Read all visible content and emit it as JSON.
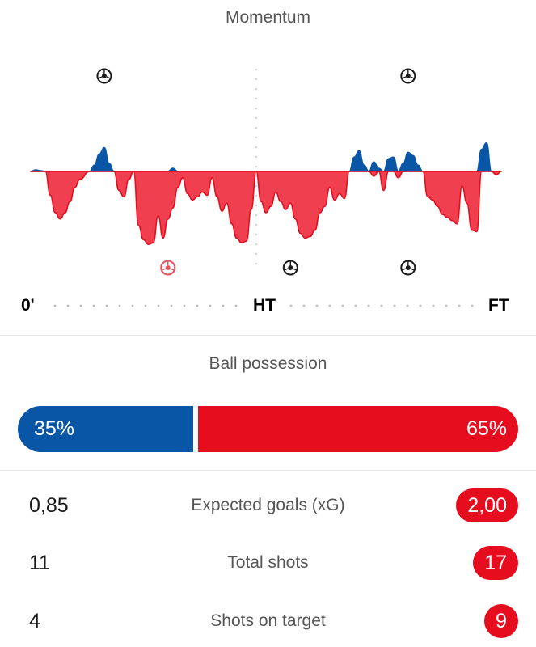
{
  "momentum": {
    "title": "Momentum",
    "axis_labels": {
      "start": "0'",
      "half_time": "HT",
      "full_time": "FT"
    },
    "home_color": "#0a56a6",
    "away_color": "#e60d1e",
    "goal_icon_name": "soccer-ball-icon",
    "events": [
      {
        "team": "home",
        "minute": 15,
        "type": "goal"
      },
      {
        "team": "away",
        "minute": 28,
        "type": "own-goal"
      },
      {
        "team": "away",
        "minute": 53,
        "type": "goal"
      },
      {
        "team": "home",
        "minute": 77,
        "type": "goal"
      },
      {
        "team": "away",
        "minute": 77,
        "type": "goal"
      }
    ]
  },
  "chart_data": {
    "type": "area",
    "title": "Momentum",
    "x_axis_ticks": [
      "0'",
      "HT",
      "FT"
    ],
    "series": [
      {
        "team": "home",
        "color": "#0a56a6",
        "points": [
          [
            0,
            0
          ],
          [
            1,
            2
          ],
          [
            2,
            1
          ],
          [
            3,
            0
          ],
          [
            12,
            0
          ],
          [
            13,
            8
          ],
          [
            14,
            22
          ],
          [
            15,
            30
          ],
          [
            16,
            10
          ],
          [
            17,
            0
          ],
          [
            28,
            0
          ],
          [
            29,
            4
          ],
          [
            30,
            0
          ],
          [
            65,
            0
          ],
          [
            66,
            18
          ],
          [
            67,
            26
          ],
          [
            68,
            8
          ],
          [
            69,
            0
          ],
          [
            70,
            12
          ],
          [
            71,
            4
          ],
          [
            72,
            0
          ],
          [
            73,
            16
          ],
          [
            74,
            18
          ],
          [
            75,
            0
          ],
          [
            76,
            10
          ],
          [
            77,
            24
          ],
          [
            78,
            20
          ],
          [
            79,
            8
          ],
          [
            80,
            0
          ],
          [
            91,
            0
          ],
          [
            92,
            28
          ],
          [
            93,
            36
          ],
          [
            94,
            0
          ],
          [
            95,
            0
          ]
        ]
      },
      {
        "team": "away",
        "color": "#e60d1e",
        "points": [
          [
            0,
            0
          ],
          [
            3,
            0
          ],
          [
            4,
            -30
          ],
          [
            5,
            -52
          ],
          [
            6,
            -60
          ],
          [
            7,
            -52
          ],
          [
            8,
            -38
          ],
          [
            9,
            -20
          ],
          [
            10,
            -10
          ],
          [
            12,
            0
          ],
          [
            17,
            0
          ],
          [
            18,
            -24
          ],
          [
            19,
            -32
          ],
          [
            20,
            -10
          ],
          [
            21,
            0
          ],
          [
            22,
            -68
          ],
          [
            23,
            -86
          ],
          [
            24,
            -92
          ],
          [
            25,
            -90
          ],
          [
            26,
            -56
          ],
          [
            27,
            -84
          ],
          [
            28,
            -60
          ],
          [
            29,
            -46
          ],
          [
            30,
            -20
          ],
          [
            31,
            -8
          ],
          [
            32,
            -28
          ],
          [
            33,
            -36
          ],
          [
            34,
            -32
          ],
          [
            35,
            -26
          ],
          [
            36,
            -30
          ],
          [
            37,
            -8
          ],
          [
            38,
            -32
          ],
          [
            39,
            -50
          ],
          [
            40,
            -40
          ],
          [
            41,
            -66
          ],
          [
            42,
            -84
          ],
          [
            43,
            -90
          ],
          [
            44,
            -88
          ],
          [
            45,
            -48
          ],
          [
            46,
            0
          ],
          [
            47,
            -38
          ],
          [
            48,
            -52
          ],
          [
            49,
            -44
          ],
          [
            50,
            -26
          ],
          [
            51,
            -38
          ],
          [
            52,
            -48
          ],
          [
            53,
            -40
          ],
          [
            54,
            -60
          ],
          [
            55,
            -78
          ],
          [
            56,
            -84
          ],
          [
            57,
            -82
          ],
          [
            58,
            -74
          ],
          [
            59,
            -52
          ],
          [
            60,
            -44
          ],
          [
            61,
            -20
          ],
          [
            62,
            -36
          ],
          [
            63,
            -28
          ],
          [
            64,
            -34
          ],
          [
            65,
            0
          ],
          [
            69,
            0
          ],
          [
            70,
            -6
          ],
          [
            71,
            0
          ],
          [
            72,
            -24
          ],
          [
            73,
            0
          ],
          [
            74,
            0
          ],
          [
            75,
            -8
          ],
          [
            76,
            0
          ],
          [
            80,
            0
          ],
          [
            81,
            -32
          ],
          [
            82,
            -36
          ],
          [
            83,
            -44
          ],
          [
            84,
            -54
          ],
          [
            85,
            -58
          ],
          [
            86,
            -62
          ],
          [
            87,
            -66
          ],
          [
            88,
            -18
          ],
          [
            89,
            -40
          ],
          [
            90,
            -74
          ],
          [
            91,
            -76
          ],
          [
            92,
            0
          ],
          [
            94,
            0
          ],
          [
            95,
            -4
          ],
          [
            96,
            0
          ]
        ]
      }
    ]
  },
  "possession": {
    "title": "Ball possession",
    "home": "35%",
    "away": "65%",
    "home_value": 35,
    "away_value": 65
  },
  "stats": [
    {
      "label": "Expected goals (xG)",
      "home": "0,85",
      "away": "2,00"
    },
    {
      "label": "Total shots",
      "home": "11",
      "away": "17"
    },
    {
      "label": "Shots on target",
      "home": "4",
      "away": "9"
    }
  ]
}
